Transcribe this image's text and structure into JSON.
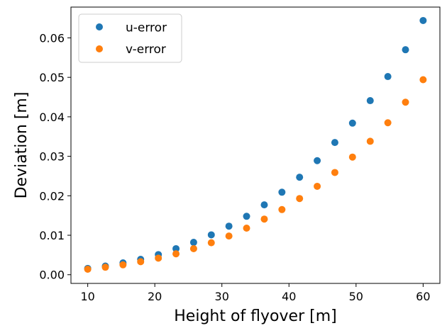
{
  "chart_data": {
    "type": "scatter",
    "title": "",
    "xlabel": "Height of flyover [m]",
    "ylabel": "Deviation [m]",
    "xlim": [
      7.5,
      62.5
    ],
    "ylim": [
      -0.0022,
      0.0678
    ],
    "xticks": [
      10,
      20,
      30,
      40,
      50,
      60
    ],
    "xtick_labels": [
      "10",
      "20",
      "30",
      "40",
      "50",
      "60"
    ],
    "yticks": [
      0.0,
      0.01,
      0.02,
      0.03,
      0.04,
      0.05,
      0.06
    ],
    "ytick_labels": [
      "0.00",
      "0.01",
      "0.02",
      "0.03",
      "0.04",
      "0.05",
      "0.06"
    ],
    "grid": false,
    "legend_position": "top-left",
    "x": [
      10.0,
      12.63,
      15.26,
      17.89,
      20.53,
      23.16,
      25.79,
      28.42,
      31.05,
      33.68,
      36.32,
      38.95,
      41.58,
      44.21,
      46.84,
      49.47,
      52.11,
      54.74,
      57.37,
      60.0
    ],
    "series": [
      {
        "name": "u-error",
        "color": "#1f77b4",
        "values": [
          0.0016,
          0.0022,
          0.003,
          0.0039,
          0.0051,
          0.0066,
          0.0082,
          0.0101,
          0.0123,
          0.0148,
          0.0177,
          0.0209,
          0.0247,
          0.0289,
          0.0335,
          0.0384,
          0.0441,
          0.0502,
          0.057,
          0.0644
        ]
      },
      {
        "name": "v-error",
        "color": "#ff7f0e",
        "values": [
          0.0014,
          0.0019,
          0.0025,
          0.0033,
          0.0042,
          0.0053,
          0.0066,
          0.0081,
          0.0098,
          0.0118,
          0.0141,
          0.0165,
          0.0193,
          0.0224,
          0.0259,
          0.0298,
          0.0338,
          0.0385,
          0.0437,
          0.0494
        ]
      }
    ]
  }
}
